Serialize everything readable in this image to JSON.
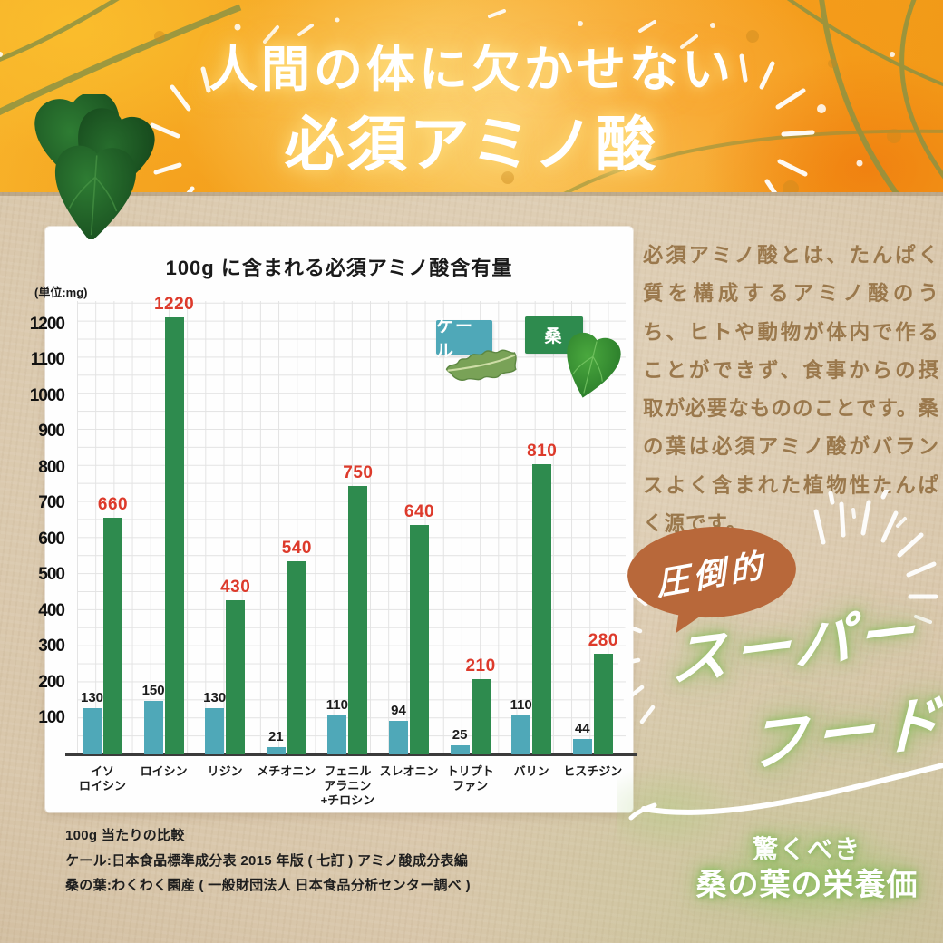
{
  "header": {
    "line1": "人間の体に欠かせない",
    "line2": "必須アミノ酸"
  },
  "chart_data": {
    "type": "bar",
    "title": "100g に含まれる必須アミノ酸含有量",
    "unit_label": "(単位:mg)",
    "categories": [
      [
        "イソ",
        "ロイシン"
      ],
      [
        "ロイシン"
      ],
      [
        "リジン"
      ],
      [
        "メチオニン"
      ],
      [
        "フェニル",
        "アラニン",
        "+チロシン"
      ],
      [
        "スレオニン"
      ],
      [
        "トリプト",
        "ファン"
      ],
      [
        "バリン"
      ],
      [
        "ヒスチジン"
      ]
    ],
    "series": [
      {
        "name": "ケール",
        "color": "#4fa8b8",
        "label_color": "#1c1c1c",
        "values": [
          130,
          150,
          130,
          21,
          110,
          94,
          25,
          110,
          44
        ]
      },
      {
        "name": "桑",
        "color": "#2e8b4e",
        "label_color": "#dd3a2b",
        "values": [
          660,
          1220,
          430,
          540,
          750,
          640,
          210,
          810,
          280
        ]
      }
    ],
    "y_ticks": [
      100,
      200,
      300,
      400,
      500,
      600,
      700,
      800,
      900,
      1000,
      1100,
      1200
    ],
    "ylim": [
      0,
      1265
    ],
    "grid": true,
    "legend_position": "top-right"
  },
  "footnotes": [
    "100g 当たりの比較",
    "ケール:日本食品標準成分表 2015 年版 ( 七訂 ) アミノ酸成分表編",
    "桑の葉:わくわく園産 ( 一般財団法人 日本食品分析センター調べ )"
  ],
  "side_text": "必須アミノ酸とは、たんぱく質を構成するアミノ酸のうち、ヒトや動物が体内で作ることができず、食事からの摂取が必要なもののことです。桑の葉は必須アミノ酸がバランスよく含まれた植物性たんぱく源です。",
  "bubble_label": "圧倒的",
  "superfood": {
    "line1": "スーパー",
    "line2": "フード"
  },
  "bottom_claim": {
    "line1": "驚くべき",
    "line2": "桑の葉の栄養価"
  },
  "colors": {
    "kale": "#4fa8b8",
    "mulberry": "#2e8b4e",
    "accent_red": "#dd3a2b",
    "bubble": "#b8683a",
    "banner_orange": "#f5a11d",
    "paper": "#d9c7ab",
    "side_text_brown": "#9a784c",
    "glow_green": "#8dbd5f",
    "ink": "#1c1c1c"
  }
}
